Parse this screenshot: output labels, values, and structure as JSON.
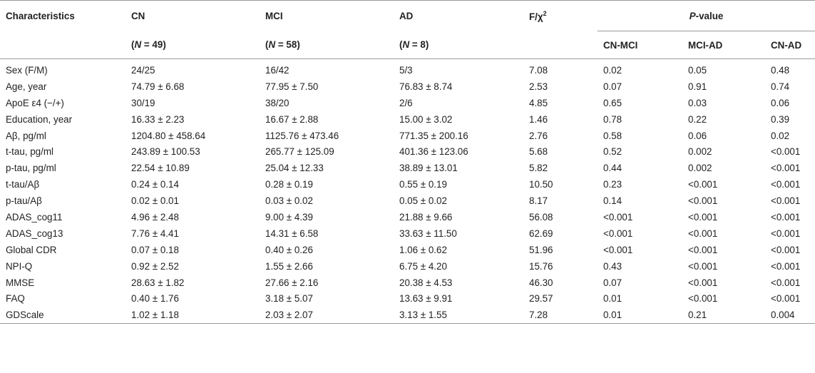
{
  "header": {
    "characteristics": "Characteristics",
    "groups": [
      {
        "name": "CN",
        "n_label": "N",
        "n_value": "= 49"
      },
      {
        "name": "MCI",
        "n_label": "N",
        "n_value": "= 58"
      },
      {
        "name": "AD",
        "n_label": "N",
        "n_value": "= 8"
      }
    ],
    "stat": "F/χ",
    "stat_sup": "2",
    "pvalue_italic": "P",
    "pvalue_rest": "-value",
    "pairs": [
      "CN-MCI",
      "MCI-AD",
      "CN-AD"
    ]
  },
  "rows": [
    {
      "label": "Sex (F/M)",
      "cn": "24/25",
      "mci": "16/42",
      "ad": "5/3",
      "stat": "7.08",
      "p1": "0.02",
      "p2": "0.05",
      "p3": "0.48"
    },
    {
      "label": "Age, year",
      "cn": "74.79 ± 6.68",
      "mci": "77.95 ± 7.50",
      "ad": "76.83 ± 8.74",
      "stat": "2.53",
      "p1": "0.07",
      "p2": "0.91",
      "p3": "0.74"
    },
    {
      "label": "ApoE ε4 (−/+)",
      "cn": "30/19",
      "mci": "38/20",
      "ad": "2/6",
      "stat": "4.85",
      "p1": "0.65",
      "p2": "0.03",
      "p3": "0.06"
    },
    {
      "label": "Education, year",
      "cn": "16.33 ± 2.23",
      "mci": "16.67 ± 2.88",
      "ad": "15.00 ± 3.02",
      "stat": "1.46",
      "p1": "0.78",
      "p2": "0.22",
      "p3": "0.39"
    },
    {
      "label": "Aβ, pg/ml",
      "cn": "1204.80 ± 458.64",
      "mci": "1125.76 ± 473.46",
      "ad": "771.35 ± 200.16",
      "stat": "2.76",
      "p1": "0.58",
      "p2": "0.06",
      "p3": "0.02"
    },
    {
      "label": "t-tau, pg/ml",
      "cn": "243.89 ± 100.53",
      "mci": "265.77 ± 125.09",
      "ad": "401.36 ± 123.06",
      "stat": "5.68",
      "p1": "0.52",
      "p2": "0.002",
      "p3": "<0.001"
    },
    {
      "label": "p-tau, pg/ml",
      "cn": "22.54 ± 10.89",
      "mci": "25.04 ± 12.33",
      "ad": "38.89 ± 13.01",
      "stat": "5.82",
      "p1": "0.44",
      "p2": "0.002",
      "p3": "<0.001"
    },
    {
      "label": "t-tau/Aβ",
      "cn": "0.24 ± 0.14",
      "mci": "0.28 ± 0.19",
      "ad": "0.55 ± 0.19",
      "stat": "10.50",
      "p1": "0.23",
      "p2": "<0.001",
      "p3": "<0.001"
    },
    {
      "label": "p-tau/Aβ",
      "cn": "0.02 ± 0.01",
      "mci": "0.03 ± 0.02",
      "ad": "0.05 ± 0.02",
      "stat": "8.17",
      "p1": "0.14",
      "p2": "<0.001",
      "p3": "<0.001"
    },
    {
      "label": "ADAS_cog11",
      "cn": "4.96 ± 2.48",
      "mci": "9.00 ± 4.39",
      "ad": "21.88 ± 9.66",
      "stat": "56.08",
      "p1": "<0.001",
      "p2": "<0.001",
      "p3": "<0.001"
    },
    {
      "label": "ADAS_cog13",
      "cn": "7.76 ± 4.41",
      "mci": "14.31 ± 6.58",
      "ad": "33.63 ± 11.50",
      "stat": "62.69",
      "p1": "<0.001",
      "p2": "<0.001",
      "p3": "<0.001"
    },
    {
      "label": "Global CDR",
      "cn": "0.07 ± 0.18",
      "mci": "0.40 ± 0.26",
      "ad": "1.06 ± 0.62",
      "stat": "51.96",
      "p1": "<0.001",
      "p2": "<0.001",
      "p3": "<0.001"
    },
    {
      "label": "NPI-Q",
      "cn": "0.92 ± 2.52",
      "mci": "1.55 ± 2.66",
      "ad": "6.75 ± 4.20",
      "stat": "15.76",
      "p1": "0.43",
      "p2": "<0.001",
      "p3": "<0.001"
    },
    {
      "label": "MMSE",
      "cn": "28.63 ± 1.82",
      "mci": "27.66 ± 2.16",
      "ad": "20.38 ± 4.53",
      "stat": "46.30",
      "p1": "0.07",
      "p2": "<0.001",
      "p3": "<0.001"
    },
    {
      "label": "FAQ",
      "cn": "0.40 ± 1.76",
      "mci": "3.18 ± 5.07",
      "ad": "13.63 ± 9.91",
      "stat": "29.57",
      "p1": "0.01",
      "p2": "<0.001",
      "p3": "<0.001"
    },
    {
      "label": "GDScale",
      "cn": "1.02 ± 1.18",
      "mci": "2.03 ± 2.07",
      "ad": "3.13 ± 1.55",
      "stat": "7.28",
      "p1": "0.01",
      "p2": "0.21",
      "p3": "0.004"
    }
  ],
  "colors": {
    "text": "#222222",
    "rule": "#9a9a9a",
    "background": "#ffffff"
  }
}
